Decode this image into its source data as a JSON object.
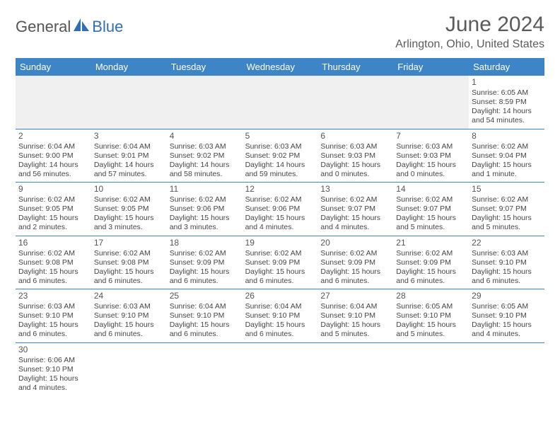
{
  "logo": {
    "part1": "General",
    "part2": "Blue"
  },
  "title": "June 2024",
  "location": "Arlington, Ohio, United States",
  "colors": {
    "header_bg": "#3d85c6",
    "header_text": "#ffffff",
    "accent": "#2f6fb5",
    "body_text": "#444444",
    "border": "#3d85c6",
    "empty_bg": "#f0f0f0"
  },
  "dayNames": [
    "Sunday",
    "Monday",
    "Tuesday",
    "Wednesday",
    "Thursday",
    "Friday",
    "Saturday"
  ],
  "weeks": [
    [
      null,
      null,
      null,
      null,
      null,
      null,
      {
        "n": "1",
        "sr": "Sunrise: 6:05 AM",
        "ss": "Sunset: 8:59 PM",
        "dl": "Daylight: 14 hours and 54 minutes."
      }
    ],
    [
      {
        "n": "2",
        "sr": "Sunrise: 6:04 AM",
        "ss": "Sunset: 9:00 PM",
        "dl": "Daylight: 14 hours and 56 minutes."
      },
      {
        "n": "3",
        "sr": "Sunrise: 6:04 AM",
        "ss": "Sunset: 9:01 PM",
        "dl": "Daylight: 14 hours and 57 minutes."
      },
      {
        "n": "4",
        "sr": "Sunrise: 6:03 AM",
        "ss": "Sunset: 9:02 PM",
        "dl": "Daylight: 14 hours and 58 minutes."
      },
      {
        "n": "5",
        "sr": "Sunrise: 6:03 AM",
        "ss": "Sunset: 9:02 PM",
        "dl": "Daylight: 14 hours and 59 minutes."
      },
      {
        "n": "6",
        "sr": "Sunrise: 6:03 AM",
        "ss": "Sunset: 9:03 PM",
        "dl": "Daylight: 15 hours and 0 minutes."
      },
      {
        "n": "7",
        "sr": "Sunrise: 6:03 AM",
        "ss": "Sunset: 9:03 PM",
        "dl": "Daylight: 15 hours and 0 minutes."
      },
      {
        "n": "8",
        "sr": "Sunrise: 6:02 AM",
        "ss": "Sunset: 9:04 PM",
        "dl": "Daylight: 15 hours and 1 minute."
      }
    ],
    [
      {
        "n": "9",
        "sr": "Sunrise: 6:02 AM",
        "ss": "Sunset: 9:05 PM",
        "dl": "Daylight: 15 hours and 2 minutes."
      },
      {
        "n": "10",
        "sr": "Sunrise: 6:02 AM",
        "ss": "Sunset: 9:05 PM",
        "dl": "Daylight: 15 hours and 3 minutes."
      },
      {
        "n": "11",
        "sr": "Sunrise: 6:02 AM",
        "ss": "Sunset: 9:06 PM",
        "dl": "Daylight: 15 hours and 3 minutes."
      },
      {
        "n": "12",
        "sr": "Sunrise: 6:02 AM",
        "ss": "Sunset: 9:06 PM",
        "dl": "Daylight: 15 hours and 4 minutes."
      },
      {
        "n": "13",
        "sr": "Sunrise: 6:02 AM",
        "ss": "Sunset: 9:07 PM",
        "dl": "Daylight: 15 hours and 4 minutes."
      },
      {
        "n": "14",
        "sr": "Sunrise: 6:02 AM",
        "ss": "Sunset: 9:07 PM",
        "dl": "Daylight: 15 hours and 5 minutes."
      },
      {
        "n": "15",
        "sr": "Sunrise: 6:02 AM",
        "ss": "Sunset: 9:07 PM",
        "dl": "Daylight: 15 hours and 5 minutes."
      }
    ],
    [
      {
        "n": "16",
        "sr": "Sunrise: 6:02 AM",
        "ss": "Sunset: 9:08 PM",
        "dl": "Daylight: 15 hours and 6 minutes."
      },
      {
        "n": "17",
        "sr": "Sunrise: 6:02 AM",
        "ss": "Sunset: 9:08 PM",
        "dl": "Daylight: 15 hours and 6 minutes."
      },
      {
        "n": "18",
        "sr": "Sunrise: 6:02 AM",
        "ss": "Sunset: 9:09 PM",
        "dl": "Daylight: 15 hours and 6 minutes."
      },
      {
        "n": "19",
        "sr": "Sunrise: 6:02 AM",
        "ss": "Sunset: 9:09 PM",
        "dl": "Daylight: 15 hours and 6 minutes."
      },
      {
        "n": "20",
        "sr": "Sunrise: 6:02 AM",
        "ss": "Sunset: 9:09 PM",
        "dl": "Daylight: 15 hours and 6 minutes."
      },
      {
        "n": "21",
        "sr": "Sunrise: 6:02 AM",
        "ss": "Sunset: 9:09 PM",
        "dl": "Daylight: 15 hours and 6 minutes."
      },
      {
        "n": "22",
        "sr": "Sunrise: 6:03 AM",
        "ss": "Sunset: 9:10 PM",
        "dl": "Daylight: 15 hours and 6 minutes."
      }
    ],
    [
      {
        "n": "23",
        "sr": "Sunrise: 6:03 AM",
        "ss": "Sunset: 9:10 PM",
        "dl": "Daylight: 15 hours and 6 minutes."
      },
      {
        "n": "24",
        "sr": "Sunrise: 6:03 AM",
        "ss": "Sunset: 9:10 PM",
        "dl": "Daylight: 15 hours and 6 minutes."
      },
      {
        "n": "25",
        "sr": "Sunrise: 6:04 AM",
        "ss": "Sunset: 9:10 PM",
        "dl": "Daylight: 15 hours and 6 minutes."
      },
      {
        "n": "26",
        "sr": "Sunrise: 6:04 AM",
        "ss": "Sunset: 9:10 PM",
        "dl": "Daylight: 15 hours and 6 minutes."
      },
      {
        "n": "27",
        "sr": "Sunrise: 6:04 AM",
        "ss": "Sunset: 9:10 PM",
        "dl": "Daylight: 15 hours and 5 minutes."
      },
      {
        "n": "28",
        "sr": "Sunrise: 6:05 AM",
        "ss": "Sunset: 9:10 PM",
        "dl": "Daylight: 15 hours and 5 minutes."
      },
      {
        "n": "29",
        "sr": "Sunrise: 6:05 AM",
        "ss": "Sunset: 9:10 PM",
        "dl": "Daylight: 15 hours and 4 minutes."
      }
    ],
    [
      {
        "n": "30",
        "sr": "Sunrise: 6:06 AM",
        "ss": "Sunset: 9:10 PM",
        "dl": "Daylight: 15 hours and 4 minutes."
      },
      null,
      null,
      null,
      null,
      null,
      null
    ]
  ]
}
